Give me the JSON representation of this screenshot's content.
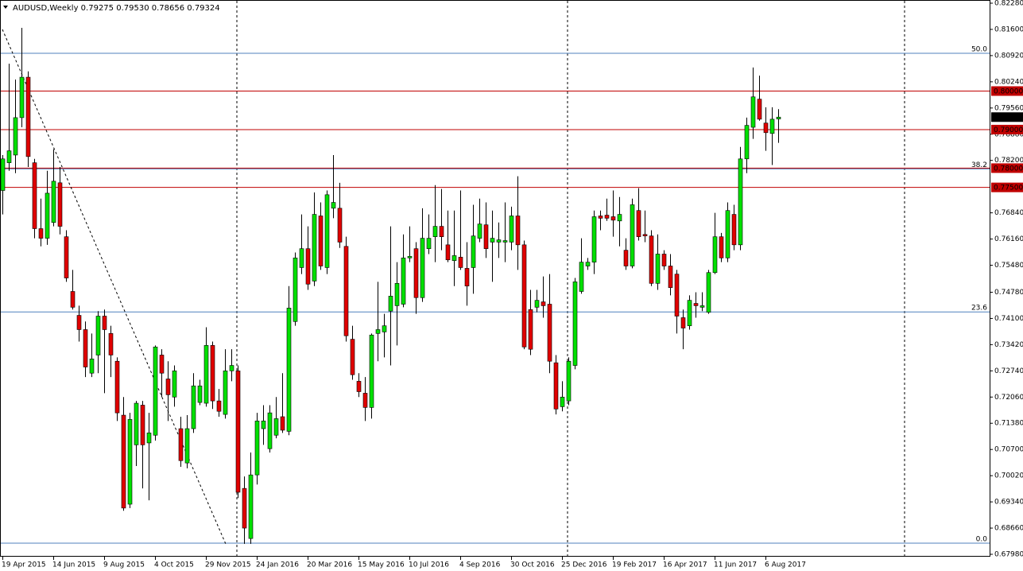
{
  "chart_data": {
    "type": "candlestick",
    "title": "AUDUSD,Weekly  0.79275 0.79530 0.78656 0.79324",
    "categories": [
      "19 Apr 2015",
      null,
      null,
      null,
      null,
      null,
      null,
      null,
      "14 Jun 2015",
      null,
      null,
      null,
      null,
      null,
      null,
      null,
      "9 Aug 2015",
      null,
      null,
      null,
      null,
      null,
      null,
      null,
      "4 Oct 2015",
      null,
      null,
      null,
      null,
      null,
      null,
      null,
      "29 Nov 2015",
      null,
      null,
      null,
      null,
      null,
      null,
      null,
      "24 Jan 2016",
      null,
      null,
      null,
      null,
      null,
      null,
      null,
      "20 Mar 2016",
      null,
      null,
      null,
      null,
      null,
      null,
      null,
      "15 May 2016",
      null,
      null,
      null,
      null,
      null,
      null,
      null,
      "10 Jul 2016",
      null,
      null,
      null,
      null,
      null,
      null,
      null,
      "4 Sep 2016",
      null,
      null,
      null,
      null,
      null,
      null,
      null,
      "30 Oct 2016",
      null,
      null,
      null,
      null,
      null,
      null,
      null,
      "25 Dec 2016",
      null,
      null,
      null,
      null,
      null,
      null,
      null,
      "19 Feb 2017",
      null,
      null,
      null,
      null,
      null,
      null,
      null,
      "16 Apr 2017",
      null,
      null,
      null,
      null,
      null,
      null,
      null,
      "11 Jun 2017",
      null,
      null,
      null,
      null,
      null,
      null,
      null,
      "6 Aug 2017",
      null,
      null
    ],
    "open": [
      0.7742,
      0.7814,
      0.7834,
      0.7931,
      0.8036,
      0.7814,
      0.7643,
      0.7618,
      0.7659,
      0.7762,
      0.7622,
      0.748,
      0.7418,
      0.7381,
      0.7268,
      0.7315,
      0.7416,
      0.7371,
      0.7299,
      0.7159,
      0.6928,
      0.7082,
      0.7185,
      0.7087,
      0.7107,
      0.7315,
      0.7253,
      0.7206,
      0.7124,
      0.7035,
      0.7124,
      0.7192,
      0.719,
      0.734,
      0.7196,
      0.7161,
      0.7274,
      0.7274,
      0.6969,
      0.6839,
      0.7004,
      0.7124,
      0.7072,
      0.7107,
      0.7155,
      0.7117,
      0.7402,
      0.7542,
      0.7591,
      0.7507,
      0.7676,
      0.7542,
      0.7696,
      0.7696,
      0.7597,
      0.7356,
      0.7247,
      0.7216,
      0.7179,
      0.7371,
      0.7375,
      0.7429,
      0.7443,
      0.7447,
      0.7567,
      0.7591,
      0.7464,
      0.7591,
      0.7622,
      0.7649,
      0.7601,
      0.756,
      0.7569,
      0.754,
      0.7542,
      0.7618,
      0.7653,
      0.7608,
      0.7608,
      0.7608,
      0.7608,
      0.7676,
      0.7601,
      0.7433,
      0.7439,
      0.7453,
      0.7447,
      0.7295,
      0.7181,
      0.7196,
      0.7288,
      0.748,
      0.7546,
      0.7556,
      0.7676,
      0.7678,
      0.7674,
      0.7663,
      0.7587,
      0.7546,
      0.769,
      0.7628,
      0.7624,
      0.7501,
      0.7577,
      0.7546,
      0.7525,
      0.7412,
      0.7391,
      0.7449,
      0.7439,
      0.7426,
      0.7529,
      0.7622,
      0.7567,
      0.768,
      0.7601,
      0.7824,
      0.7906,
      0.7979,
      0.7917,
      0.789,
      0.79275
    ],
    "high": [
      0.7834,
      0.8071,
      0.803,
      0.8164,
      0.8051,
      0.7824,
      0.7721,
      0.7793,
      0.7849,
      0.7803,
      0.7639,
      0.7536,
      0.7443,
      0.7402,
      0.7371,
      0.7429,
      0.7433,
      0.7391,
      0.7309,
      0.7206,
      0.7165,
      0.7196,
      0.7196,
      0.7165,
      0.734,
      0.733,
      0.7299,
      0.7288,
      0.7155,
      0.7159,
      0.7268,
      0.7251,
      0.7387,
      0.735,
      0.7227,
      0.733,
      0.733,
      0.7288,
      0.7,
      0.7062,
      0.7165,
      0.7185,
      0.7185,
      0.7206,
      0.7268,
      0.7494,
      0.7581,
      0.768,
      0.7649,
      0.7737,
      0.7711,
      0.7742,
      0.7834,
      0.7762,
      0.7622,
      0.7391,
      0.7268,
      0.7258,
      0.7371,
      0.7505,
      0.7422,
      0.7649,
      0.7556,
      0.7628,
      0.7649,
      0.7608,
      0.7696,
      0.768,
      0.7756,
      0.7746,
      0.769,
      0.769,
      0.7742,
      0.7608,
      0.7705,
      0.7721,
      0.7711,
      0.769,
      0.7659,
      0.7711,
      0.77,
      0.7779,
      0.7612,
      0.7484,
      0.7484,
      0.7519,
      0.7525,
      0.7315,
      0.7247,
      0.7309,
      0.7515,
      0.7618,
      0.7567,
      0.769,
      0.769,
      0.7721,
      0.7742,
      0.7725,
      0.7618,
      0.7721,
      0.7748,
      0.769,
      0.7639,
      0.7628,
      0.7587,
      0.7577,
      0.7536,
      0.7433,
      0.747,
      0.7478,
      0.7478,
      0.7536,
      0.7684,
      0.7632,
      0.7711,
      0.7705,
      0.7855,
      0.7931,
      0.8061,
      0.804,
      0.7958,
      0.7958,
      0.7953
    ],
    "low": [
      0.768,
      0.7793,
      0.7787,
      0.7906,
      0.7803,
      0.7618,
      0.7597,
      0.7601,
      0.7649,
      0.7628,
      0.7505,
      0.7433,
      0.735,
      0.7258,
      0.7258,
      0.7268,
      0.7216,
      0.7258,
      0.7144,
      0.6911,
      0.6918,
      0.7027,
      0.6969,
      0.6938,
      0.7093,
      0.7206,
      0.7144,
      0.7181,
      0.7025,
      0.7021,
      0.7113,
      0.7185,
      0.7181,
      0.7175,
      0.7155,
      0.715,
      0.7247,
      0.6944,
      0.6825,
      0.6825,
      0.6979,
      0.7082,
      0.7062,
      0.7099,
      0.7113,
      0.7107,
      0.7391,
      0.7525,
      0.7484,
      0.7494,
      0.7536,
      0.7525,
      0.767,
      0.7593,
      0.735,
      0.7251,
      0.7206,
      0.7144,
      0.715,
      0.7299,
      0.7309,
      0.7288,
      0.734,
      0.7439,
      0.7556,
      0.7422,
      0.7453,
      0.7577,
      0.7556,
      0.7587,
      0.7556,
      0.7494,
      0.7536,
      0.7443,
      0.7474,
      0.7608,
      0.7567,
      0.7505,
      0.7567,
      0.7556,
      0.7587,
      0.7536,
      0.733,
      0.7315,
      0.7426,
      0.7412,
      0.7268,
      0.7161,
      0.7169,
      0.7185,
      0.7278,
      0.7474,
      0.7536,
      0.7525,
      0.7639,
      0.7663,
      0.7622,
      0.7597,
      0.7536,
      0.754,
      0.7612,
      0.7608,
      0.7494,
      0.7484,
      0.7536,
      0.747,
      0.7371,
      0.733,
      0.7381,
      0.7412,
      0.7429,
      0.7422,
      0.7525,
      0.7556,
      0.7556,
      0.7587,
      0.7587,
      0.7787,
      0.7876,
      0.7923,
      0.7845,
      0.7808,
      0.78656
    ],
    "close": [
      0.7824,
      0.7845,
      0.7931,
      0.8036,
      0.783,
      0.7643,
      0.7618,
      0.7735,
      0.7766,
      0.7649,
      0.7515,
      0.7439,
      0.7381,
      0.7284,
      0.7305,
      0.7416,
      0.7381,
      0.7315,
      0.7165,
      0.6918,
      0.7148,
      0.719,
      0.7082,
      0.7113,
      0.7336,
      0.7268,
      0.7212,
      0.7274,
      0.7041,
      0.7124,
      0.7235,
      0.7235,
      0.734,
      0.7196,
      0.7169,
      0.7274,
      0.7288,
      0.6959,
      0.6866,
      0.7004,
      0.7144,
      0.7144,
      0.7165,
      0.715,
      0.712,
      0.7437,
      0.7567,
      0.7591,
      0.7499,
      0.768,
      0.7546,
      0.7731,
      0.7711,
      0.7608,
      0.7365,
      0.7264,
      0.722,
      0.7179,
      0.7367,
      0.7381,
      0.7391,
      0.7468,
      0.7501,
      0.7567,
      0.7571,
      0.7464,
      0.7618,
      0.7618,
      0.7649,
      0.7622,
      0.7562,
      0.7573,
      0.7542,
      0.7494,
      0.7624,
      0.7655,
      0.7591,
      0.7618,
      0.7614,
      0.7612,
      0.7676,
      0.7601,
      0.7336,
      0.733,
      0.7457,
      0.7443,
      0.7299,
      0.7175,
      0.7206,
      0.7299,
      0.7505,
      0.7556,
      0.7556,
      0.7674,
      0.767,
      0.767,
      0.7665,
      0.768,
      0.7546,
      0.7705,
      0.7622,
      0.7624,
      0.7501,
      0.7577,
      0.7546,
      0.749,
      0.7416,
      0.7385,
      0.7457,
      0.7443,
      0.7443,
      0.7529,
      0.7622,
      0.7567,
      0.769,
      0.7601,
      0.7824,
      0.7911,
      0.7985,
      0.7927,
      0.7892,
      0.7927,
      0.79324
    ],
    "colors": {
      "up": "#00e000",
      "down": "#e00000",
      "wick": "#000000",
      "level": "#c00000",
      "fib": "#4f81bd"
    },
    "ylim": [
      0.6798,
      0.8228
    ],
    "yticks": [
      {
        "value": 0.8228,
        "label": "0.82280"
      },
      {
        "value": 0.816,
        "label": "0.81600"
      },
      {
        "value": 0.8092,
        "label": "0.80920"
      },
      {
        "value": 0.8024,
        "label": "0.80240"
      },
      {
        "value": 0.7956,
        "label": "0.79560"
      },
      {
        "value": 0.7888,
        "label": "0.78880"
      },
      {
        "value": 0.782,
        "label": "0.78200"
      },
      {
        "value": 0.7684,
        "label": "0.76840"
      },
      {
        "value": 0.7616,
        "label": "0.76160"
      },
      {
        "value": 0.7548,
        "label": "0.75480"
      },
      {
        "value": 0.7478,
        "label": "0.74780"
      },
      {
        "value": 0.741,
        "label": "0.74100"
      },
      {
        "value": 0.7342,
        "label": "0.73420"
      },
      {
        "value": 0.7274,
        "label": "0.72740"
      },
      {
        "value": 0.7206,
        "label": "0.72060"
      },
      {
        "value": 0.7138,
        "label": "0.71380"
      },
      {
        "value": 0.707,
        "label": "0.70700"
      },
      {
        "value": 0.7002,
        "label": "0.70020"
      },
      {
        "value": 0.6934,
        "label": "0.69340"
      },
      {
        "value": 0.6866,
        "label": "0.68660"
      },
      {
        "value": 0.6798,
        "label": "0.67980"
      }
    ],
    "levels": [
      {
        "value": 0.8,
        "label": "0.80000"
      },
      {
        "value": 0.79,
        "label": "0.79000"
      },
      {
        "value": 0.78,
        "label": "0.78000"
      },
      {
        "value": 0.775,
        "label": "0.77500"
      }
    ],
    "fibonacci": {
      "price_0": 0.6827,
      "price_100": 0.9369,
      "levels": [
        {
          "value": 50,
          "label": "50.0"
        },
        {
          "value": 38.2,
          "label": "38.2"
        },
        {
          "value": 23.6,
          "label": "23.6"
        },
        {
          "value": 0,
          "label": "0.0"
        }
      ]
    }
  }
}
